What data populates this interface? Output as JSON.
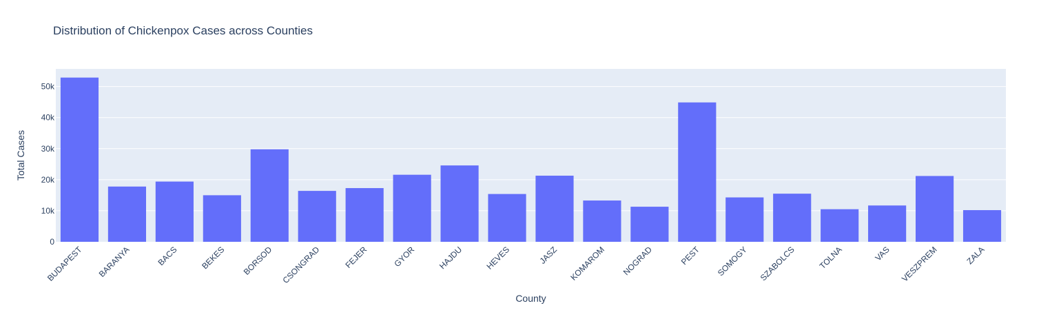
{
  "chart_data": {
    "type": "bar",
    "title": "Distribution of Chickenpox Cases across Counties",
    "xlabel": "County",
    "ylabel": "Total Cases",
    "categories": [
      "BUDAPEST",
      "BARANYA",
      "BACS",
      "BEKES",
      "BORSOD",
      "CSONGRAD",
      "FEJER",
      "GYOR",
      "HAJDU",
      "HEVES",
      "JASZ",
      "KOMAROM",
      "NOGRAD",
      "PEST",
      "SOMOGY",
      "SZABOLCS",
      "TOLNA",
      "VAS",
      "VESZPREM",
      "ZALA"
    ],
    "values": [
      52900,
      17800,
      19400,
      15000,
      29800,
      16400,
      17300,
      21600,
      24600,
      15400,
      21300,
      13300,
      11300,
      44900,
      14300,
      15500,
      10500,
      11700,
      21200,
      10200
    ],
    "ylim": [
      0,
      55700
    ],
    "y_ticks": [
      0,
      10000,
      20000,
      30000,
      40000,
      50000
    ],
    "y_tick_labels": [
      "0",
      "10k",
      "20k",
      "30k",
      "40k",
      "50k"
    ],
    "grid": true,
    "legend": "none",
    "colors": {
      "bar": "#636efa",
      "plot_background": "#e5ecf6",
      "text": "#2a3f5f"
    }
  }
}
